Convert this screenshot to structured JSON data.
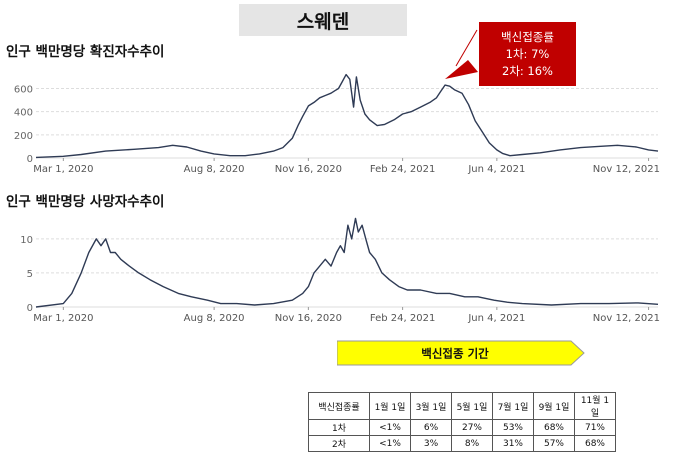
{
  "page_title": "스웨덴",
  "callout": {
    "title": "백신접종률",
    "dose1": "1차: 7%",
    "dose2": "2차: 16%"
  },
  "vaccination_period": {
    "banner": "백신접종 기간",
    "header": [
      "백신접종률",
      "1월 1일",
      "3월 1일",
      "5월 1일",
      "7월 1일",
      "9월 1일",
      "11월 1일"
    ],
    "rows": [
      [
        "1차",
        "<1%",
        "6%",
        "27%",
        "53%",
        "68%",
        "71%"
      ],
      [
        "2차",
        "<1%",
        "3%",
        "8%",
        "31%",
        "57%",
        "68%"
      ]
    ]
  },
  "chart_data": [
    {
      "type": "line",
      "title": "인구 백만명당 확진자수추이",
      "x_tick_labels": [
        "Mar 1, 2020",
        "Aug 8, 2020",
        "Nov 16, 2020",
        "Feb 24, 2021",
        "Jun 4, 2021",
        "Nov 12, 2021"
      ],
      "x": [
        "2020-02-01",
        "2020-03-01",
        "2020-03-20",
        "2020-04-15",
        "2020-05-15",
        "2020-06-10",
        "2020-06-25",
        "2020-07-10",
        "2020-07-25",
        "2020-08-08",
        "2020-08-25",
        "2020-09-10",
        "2020-09-25",
        "2020-10-10",
        "2020-10-20",
        "2020-10-30",
        "2020-11-05",
        "2020-11-10",
        "2020-11-16",
        "2020-11-22",
        "2020-11-28",
        "2020-12-04",
        "2020-12-10",
        "2020-12-14",
        "2020-12-18",
        "2020-12-22",
        "2020-12-26",
        "2020-12-30",
        "2021-01-03",
        "2021-01-06",
        "2021-01-10",
        "2021-01-15",
        "2021-01-20",
        "2021-01-28",
        "2021-02-05",
        "2021-02-15",
        "2021-02-24",
        "2021-03-05",
        "2021-03-15",
        "2021-03-25",
        "2021-04-01",
        "2021-04-05",
        "2021-04-10",
        "2021-04-15",
        "2021-04-20",
        "2021-04-28",
        "2021-05-05",
        "2021-05-12",
        "2021-05-20",
        "2021-05-27",
        "2021-06-04",
        "2021-06-10",
        "2021-06-18",
        "2021-07-01",
        "2021-07-20",
        "2021-08-10",
        "2021-09-01",
        "2021-09-20",
        "2021-10-10",
        "2021-10-30",
        "2021-11-12",
        "2021-11-22"
      ],
      "y": [
        5,
        15,
        30,
        60,
        75,
        90,
        110,
        95,
        60,
        35,
        20,
        20,
        35,
        60,
        90,
        170,
        280,
        360,
        450,
        480,
        520,
        540,
        560,
        580,
        600,
        660,
        720,
        680,
        440,
        700,
        500,
        380,
        330,
        280,
        290,
        330,
        380,
        400,
        440,
        480,
        520,
        570,
        630,
        620,
        590,
        560,
        460,
        320,
        220,
        130,
        70,
        40,
        20,
        30,
        45,
        70,
        90,
        100,
        110,
        95,
        70,
        60
      ],
      "ylim": [
        0,
        760
      ],
      "y_ticks": [
        0,
        200,
        400,
        600
      ],
      "grid": true
    },
    {
      "type": "line",
      "title": "인구 백만명당 사망자수추이",
      "x_tick_labels": [
        "Mar 1, 2020",
        "Aug 8, 2020",
        "Nov 16, 2020",
        "Feb 24, 2021",
        "Jun 4, 2021",
        "Nov 12, 2021"
      ],
      "x": [
        "2020-02-01",
        "2020-03-01",
        "2020-03-10",
        "2020-03-20",
        "2020-03-28",
        "2020-04-05",
        "2020-04-10",
        "2020-04-15",
        "2020-04-20",
        "2020-04-25",
        "2020-05-01",
        "2020-05-10",
        "2020-05-20",
        "2020-06-01",
        "2020-06-15",
        "2020-07-01",
        "2020-07-15",
        "2020-08-01",
        "2020-08-15",
        "2020-09-01",
        "2020-09-20",
        "2020-10-10",
        "2020-10-30",
        "2020-11-10",
        "2020-11-16",
        "2020-11-22",
        "2020-11-28",
        "2020-12-04",
        "2020-12-10",
        "2020-12-16",
        "2020-12-20",
        "2020-12-24",
        "2020-12-28",
        "2021-01-01",
        "2021-01-05",
        "2021-01-08",
        "2021-01-12",
        "2021-01-16",
        "2021-01-20",
        "2021-01-26",
        "2021-02-02",
        "2021-02-10",
        "2021-02-20",
        "2021-03-01",
        "2021-03-15",
        "2021-04-01",
        "2021-04-15",
        "2021-05-01",
        "2021-05-15",
        "2021-06-01",
        "2021-06-15",
        "2021-07-01",
        "2021-08-01",
        "2021-09-01",
        "2021-10-01",
        "2021-11-01",
        "2021-11-22"
      ],
      "y": [
        0,
        0.5,
        2,
        5,
        8,
        10,
        9,
        10,
        8,
        8,
        7,
        6,
        5,
        4,
        3,
        2,
        1.5,
        1,
        0.5,
        0.5,
        0.3,
        0.5,
        1,
        2,
        3,
        5,
        6,
        7,
        6,
        8,
        9,
        8,
        12,
        10,
        13,
        11,
        12,
        10,
        8,
        7,
        5,
        4,
        3,
        2.5,
        2.5,
        2,
        2,
        1.5,
        1.5,
        1,
        0.7,
        0.5,
        0.3,
        0.5,
        0.5,
        0.6,
        0.4
      ],
      "ylim": [
        0,
        13.5
      ],
      "y_ticks": [
        0,
        5,
        10
      ],
      "grid": true
    }
  ]
}
